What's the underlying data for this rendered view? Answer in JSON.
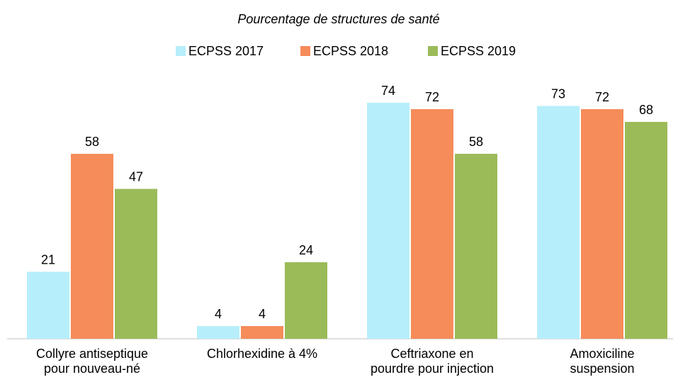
{
  "chart_data": {
    "type": "bar",
    "title": "Pourcentage de structures de santé",
    "categories": [
      "Collyre antiseptique\npour nouveau-né",
      "Chlorhexidine à 4%",
      "Ceftriaxone en\npourdre pour injection",
      "Amoxiciline\nsuspension"
    ],
    "series": [
      {
        "name": "ECPSS 2017",
        "color": "#b7eefb",
        "values": [
          21,
          4,
          74,
          73
        ]
      },
      {
        "name": "ECPSS 2018",
        "color": "#f58c5a",
        "values": [
          58,
          4,
          72,
          72
        ]
      },
      {
        "name": "ECPSS 2019",
        "color": "#9bbb59",
        "values": [
          47,
          24,
          58,
          68
        ]
      }
    ]
  }
}
